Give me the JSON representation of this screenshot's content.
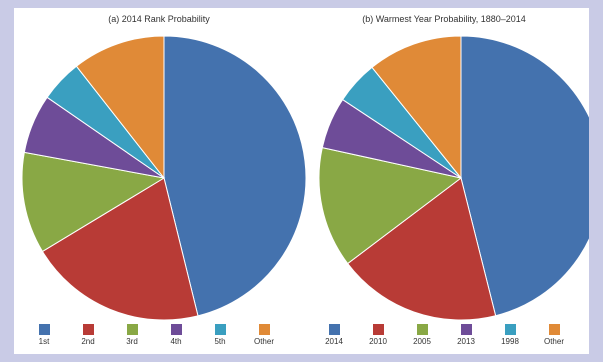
{
  "chart_data": [
    {
      "type": "pie",
      "title": "(a) 2014 Rank Probability",
      "categories": [
        "1st",
        "2nd",
        "3rd",
        "4th",
        "5th",
        "Other"
      ],
      "values": [
        48,
        21,
        12,
        7,
        5,
        11
      ],
      "colors": [
        "#4472ae",
        "#b83b36",
        "#89a845",
        "#6e4c98",
        "#3a9fc0",
        "#e08a37"
      ],
      "start": "top",
      "direction": "clockwise"
    },
    {
      "type": "pie",
      "title": "(b) Warmest Year Probability, 1880–2014",
      "categories": [
        "2014",
        "2010",
        "2005",
        "2013",
        "1998",
        "Other"
      ],
      "values": [
        47,
        19,
        14,
        6,
        5,
        11
      ],
      "colors": [
        "#4472ae",
        "#b83b36",
        "#89a845",
        "#6e4c98",
        "#3a9fc0",
        "#e08a37"
      ],
      "start": "top",
      "direction": "clockwise"
    }
  ]
}
